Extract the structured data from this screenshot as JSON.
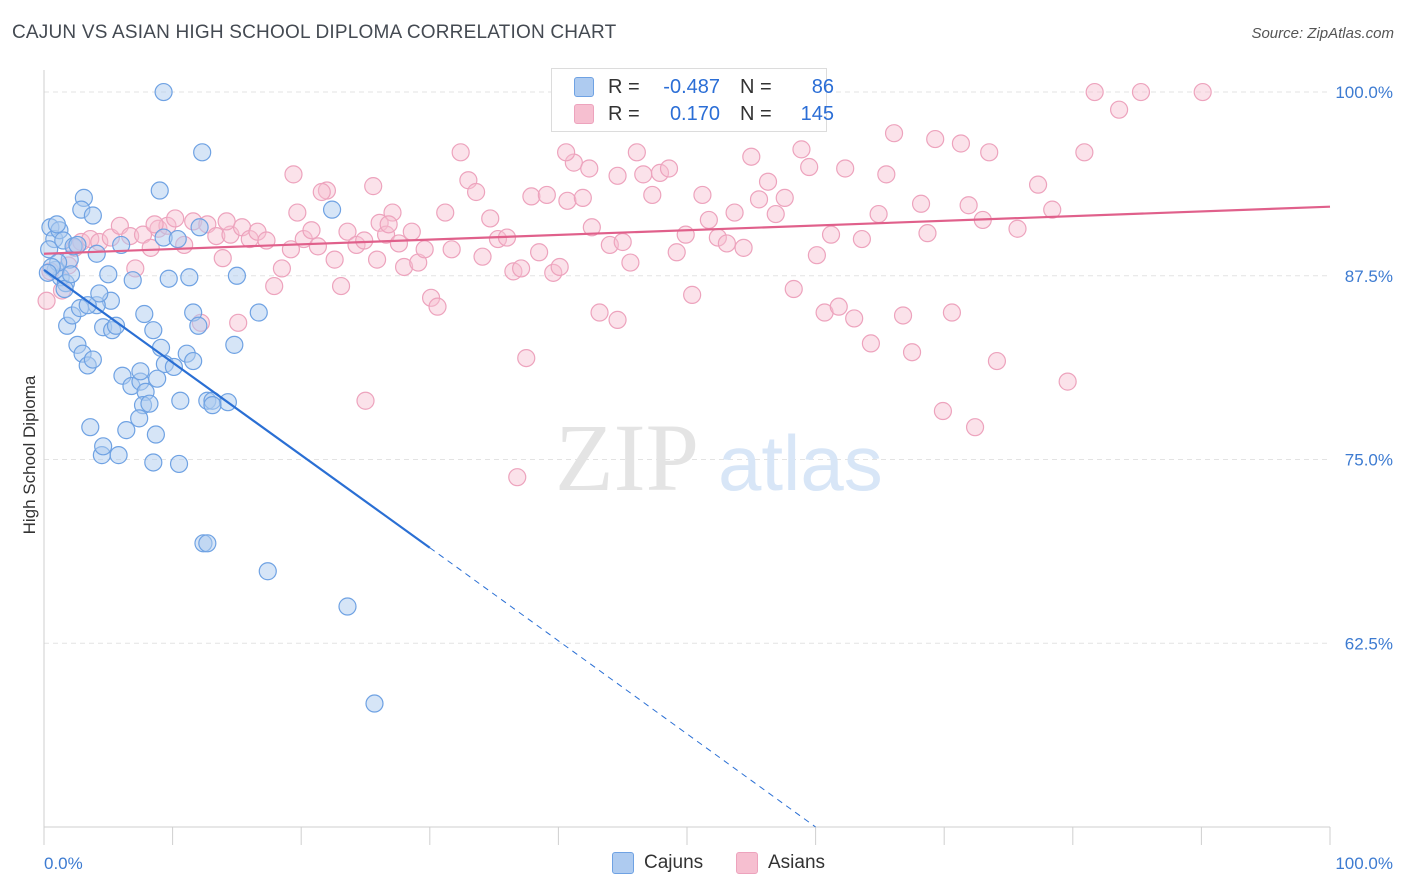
{
  "header": {
    "title": "CAJUN VS ASIAN HIGH SCHOOL DIPLOMA CORRELATION CHART",
    "source": "Source: ZipAtlas.com"
  },
  "watermark": {
    "zip": "ZIP",
    "atlas": "atlas"
  },
  "colors": {
    "cajun_fill": "#aecbf0",
    "cajun_stroke": "#6fa2e3",
    "cajun_line": "#2a6fd4",
    "asian_fill": "#f6bfd0",
    "asian_stroke": "#eda3bd",
    "asian_line": "#e0608b",
    "axis_text": "#3d7bd1",
    "grid": "#e3e3e3"
  },
  "legend_top": {
    "rows": [
      {
        "r_label": "R =",
        "r_value": "-0.487",
        "n_label": "N =",
        "n_value": "86"
      },
      {
        "r_label": "R =",
        "r_value": "0.170",
        "n_label": "N =",
        "n_value": "145"
      }
    ]
  },
  "legend_bottom": {
    "cajuns": "Cajuns",
    "asians": "Asians"
  },
  "chart_data": {
    "type": "scatter",
    "title": "CAJUN VS ASIAN HIGH SCHOOL DIPLOMA CORRELATION CHART",
    "xlabel": "",
    "ylabel": "High School Diploma",
    "xlim": [
      0,
      100
    ],
    "ylim": [
      50,
      101.5
    ],
    "x_tick_labels": [
      "0.0%",
      "100.0%"
    ],
    "y_ticks": [
      62.5,
      75.0,
      87.5,
      100.0
    ],
    "y_tick_labels": [
      "62.5%",
      "75.0%",
      "87.5%",
      "100.0%"
    ],
    "grid": true,
    "legend_position": "top-center",
    "series": [
      {
        "name": "Cajuns",
        "r": -0.487,
        "n": 86,
        "trend": {
          "x0": 0,
          "y0": 87.9,
          "x1": 30,
          "y1": 69.0,
          "dash_to_x": 60,
          "dash_to_y": 50
        },
        "points": [
          [
            0.5,
            90.8
          ],
          [
            0.8,
            90.0
          ],
          [
            0.4,
            89.3
          ],
          [
            1.2,
            90.6
          ],
          [
            1.0,
            91.0
          ],
          [
            1.5,
            89.9
          ],
          [
            1.3,
            87.4
          ],
          [
            0.9,
            87.9
          ],
          [
            1.7,
            87.0
          ],
          [
            2.0,
            88.6
          ],
          [
            2.3,
            89.5
          ],
          [
            2.6,
            89.6
          ],
          [
            3.1,
            92.8
          ],
          [
            2.9,
            92.0
          ],
          [
            3.8,
            91.6
          ],
          [
            4.1,
            89.0
          ],
          [
            5.0,
            87.6
          ],
          [
            5.2,
            85.8
          ],
          [
            6.0,
            89.6
          ],
          [
            6.9,
            87.2
          ],
          [
            9.0,
            93.3
          ],
          [
            9.3,
            90.1
          ],
          [
            9.7,
            87.3
          ],
          [
            10.4,
            90.0
          ],
          [
            11.3,
            87.4
          ],
          [
            11.6,
            85.0
          ],
          [
            12.1,
            90.8
          ],
          [
            7.8,
            84.9
          ],
          [
            8.5,
            83.8
          ],
          [
            9.1,
            82.6
          ],
          [
            1.8,
            84.1
          ],
          [
            2.2,
            84.8
          ],
          [
            2.6,
            82.8
          ],
          [
            3.0,
            82.2
          ],
          [
            3.4,
            81.4
          ],
          [
            3.8,
            81.8
          ],
          [
            4.1,
            85.5
          ],
          [
            4.6,
            84.0
          ],
          [
            5.3,
            83.8
          ],
          [
            5.6,
            84.1
          ],
          [
            2.8,
            85.3
          ],
          [
            3.4,
            85.5
          ],
          [
            6.1,
            80.7
          ],
          [
            6.8,
            80.0
          ],
          [
            7.5,
            80.3
          ],
          [
            7.9,
            79.6
          ],
          [
            7.7,
            78.7
          ],
          [
            8.2,
            78.8
          ],
          [
            8.8,
            80.5
          ],
          [
            9.4,
            81.5
          ],
          [
            10.1,
            81.3
          ],
          [
            10.6,
            79.0
          ],
          [
            11.1,
            82.2
          ],
          [
            11.6,
            81.7
          ],
          [
            12.7,
            79.0
          ],
          [
            13.1,
            79.0
          ],
          [
            14.3,
            78.9
          ],
          [
            13.1,
            78.7
          ],
          [
            3.6,
            77.2
          ],
          [
            4.5,
            75.3
          ],
          [
            4.6,
            75.9
          ],
          [
            5.8,
            75.3
          ],
          [
            6.4,
            77.0
          ],
          [
            7.4,
            77.8
          ],
          [
            8.5,
            74.8
          ],
          [
            8.7,
            76.7
          ],
          [
            10.5,
            74.7
          ],
          [
            12.4,
            69.3
          ],
          [
            12.7,
            69.3
          ],
          [
            17.4,
            67.4
          ],
          [
            23.6,
            65.0
          ],
          [
            25.7,
            58.4
          ],
          [
            9.3,
            100.0
          ],
          [
            12.3,
            95.9
          ],
          [
            15.0,
            87.5
          ],
          [
            14.8,
            82.8
          ],
          [
            16.7,
            85.0
          ],
          [
            22.4,
            92.0
          ],
          [
            12.0,
            84.1
          ],
          [
            7.5,
            81.0
          ],
          [
            1.1,
            88.4
          ],
          [
            0.6,
            88.1
          ],
          [
            0.3,
            87.7
          ],
          [
            1.6,
            86.6
          ],
          [
            2.1,
            87.6
          ],
          [
            4.3,
            86.3
          ]
        ]
      },
      {
        "name": "Asians",
        "r": 0.17,
        "n": 145,
        "trend": {
          "x0": 0,
          "y0": 89.0,
          "x1": 100,
          "y1": 92.2
        },
        "points": [
          [
            0.2,
            85.8
          ],
          [
            0.5,
            87.8
          ],
          [
            1.4,
            86.5
          ],
          [
            1.9,
            88.2
          ],
          [
            2.4,
            89.4
          ],
          [
            2.9,
            89.8
          ],
          [
            3.6,
            90.0
          ],
          [
            4.3,
            89.8
          ],
          [
            5.2,
            90.1
          ],
          [
            5.9,
            90.9
          ],
          [
            6.7,
            90.2
          ],
          [
            7.1,
            88.0
          ],
          [
            7.7,
            90.3
          ],
          [
            8.3,
            89.4
          ],
          [
            8.9,
            90.7
          ],
          [
            9.6,
            90.9
          ],
          [
            10.2,
            91.4
          ],
          [
            10.9,
            89.6
          ],
          [
            11.6,
            91.2
          ],
          [
            12.2,
            84.3
          ],
          [
            12.7,
            91.0
          ],
          [
            13.4,
            90.2
          ],
          [
            13.9,
            88.7
          ],
          [
            14.5,
            90.3
          ],
          [
            15.1,
            84.3
          ],
          [
            15.4,
            90.8
          ],
          [
            16.0,
            90.0
          ],
          [
            16.6,
            90.5
          ],
          [
            17.3,
            89.9
          ],
          [
            17.9,
            86.8
          ],
          [
            18.5,
            88.0
          ],
          [
            19.2,
            89.3
          ],
          [
            19.7,
            91.8
          ],
          [
            20.2,
            90.0
          ],
          [
            20.8,
            90.6
          ],
          [
            21.3,
            89.5
          ],
          [
            22.0,
            93.3
          ],
          [
            22.6,
            88.6
          ],
          [
            23.1,
            86.8
          ],
          [
            23.6,
            90.5
          ],
          [
            24.3,
            89.6
          ],
          [
            24.9,
            89.9
          ],
          [
            25.6,
            93.6
          ],
          [
            26.1,
            91.1
          ],
          [
            26.6,
            90.3
          ],
          [
            27.1,
            91.8
          ],
          [
            27.6,
            89.7
          ],
          [
            28.0,
            88.1
          ],
          [
            28.6,
            90.5
          ],
          [
            29.1,
            88.4
          ],
          [
            29.6,
            89.3
          ],
          [
            30.1,
            86.0
          ],
          [
            30.6,
            85.4
          ],
          [
            31.2,
            91.8
          ],
          [
            31.7,
            89.3
          ],
          [
            32.4,
            95.9
          ],
          [
            33.0,
            94.0
          ],
          [
            33.6,
            93.2
          ],
          [
            34.1,
            88.8
          ],
          [
            34.7,
            91.4
          ],
          [
            35.3,
            90.0
          ],
          [
            36.0,
            90.1
          ],
          [
            36.5,
            87.8
          ],
          [
            37.1,
            88.0
          ],
          [
            37.9,
            92.9
          ],
          [
            38.5,
            89.1
          ],
          [
            39.1,
            93.0
          ],
          [
            39.6,
            87.7
          ],
          [
            40.1,
            88.1
          ],
          [
            40.7,
            92.6
          ],
          [
            41.2,
            95.2
          ],
          [
            41.9,
            92.8
          ],
          [
            42.6,
            90.8
          ],
          [
            43.2,
            85.0
          ],
          [
            44.0,
            89.6
          ],
          [
            44.6,
            84.5
          ],
          [
            45.0,
            89.8
          ],
          [
            45.6,
            88.4
          ],
          [
            46.1,
            95.9
          ],
          [
            46.6,
            94.4
          ],
          [
            47.3,
            93.0
          ],
          [
            47.9,
            94.5
          ],
          [
            48.6,
            94.8
          ],
          [
            49.2,
            89.1
          ],
          [
            49.9,
            90.3
          ],
          [
            50.4,
            86.2
          ],
          [
            51.2,
            93.0
          ],
          [
            51.7,
            91.3
          ],
          [
            52.4,
            90.1
          ],
          [
            53.1,
            89.7
          ],
          [
            53.7,
            91.8
          ],
          [
            54.4,
            89.4
          ],
          [
            55.0,
            95.6
          ],
          [
            55.6,
            92.7
          ],
          [
            56.3,
            93.9
          ],
          [
            56.9,
            91.7
          ],
          [
            57.6,
            92.8
          ],
          [
            58.3,
            86.6
          ],
          [
            58.9,
            96.1
          ],
          [
            59.5,
            94.9
          ],
          [
            60.1,
            88.9
          ],
          [
            60.7,
            85.0
          ],
          [
            61.2,
            90.3
          ],
          [
            61.8,
            85.4
          ],
          [
            62.3,
            94.8
          ],
          [
            63.0,
            84.6
          ],
          [
            63.6,
            90.0
          ],
          [
            64.3,
            82.9
          ],
          [
            64.9,
            91.7
          ],
          [
            65.5,
            94.4
          ],
          [
            66.1,
            97.2
          ],
          [
            66.8,
            84.8
          ],
          [
            67.5,
            82.3
          ],
          [
            68.2,
            92.4
          ],
          [
            68.7,
            90.4
          ],
          [
            69.3,
            96.8
          ],
          [
            69.9,
            78.3
          ],
          [
            70.6,
            85.0
          ],
          [
            71.3,
            96.5
          ],
          [
            71.9,
            92.3
          ],
          [
            72.4,
            77.2
          ],
          [
            73.0,
            91.3
          ],
          [
            73.5,
            95.9
          ],
          [
            74.1,
            81.7
          ],
          [
            77.3,
            93.7
          ],
          [
            75.7,
            90.7
          ],
          [
            78.4,
            92.0
          ],
          [
            80.9,
            95.9
          ],
          [
            81.7,
            100.0
          ],
          [
            83.6,
            98.8
          ],
          [
            85.3,
            100.0
          ],
          [
            90.1,
            100.0
          ],
          [
            79.6,
            80.3
          ],
          [
            19.4,
            94.4
          ],
          [
            21.6,
            93.2
          ],
          [
            25.0,
            79.0
          ],
          [
            25.9,
            88.6
          ],
          [
            26.8,
            91.0
          ],
          [
            14.2,
            91.2
          ],
          [
            8.6,
            91.0
          ],
          [
            37.5,
            81.9
          ],
          [
            44.6,
            94.3
          ],
          [
            42.4,
            94.8
          ],
          [
            40.6,
            95.9
          ],
          [
            36.8,
            73.8
          ]
        ]
      }
    ]
  }
}
